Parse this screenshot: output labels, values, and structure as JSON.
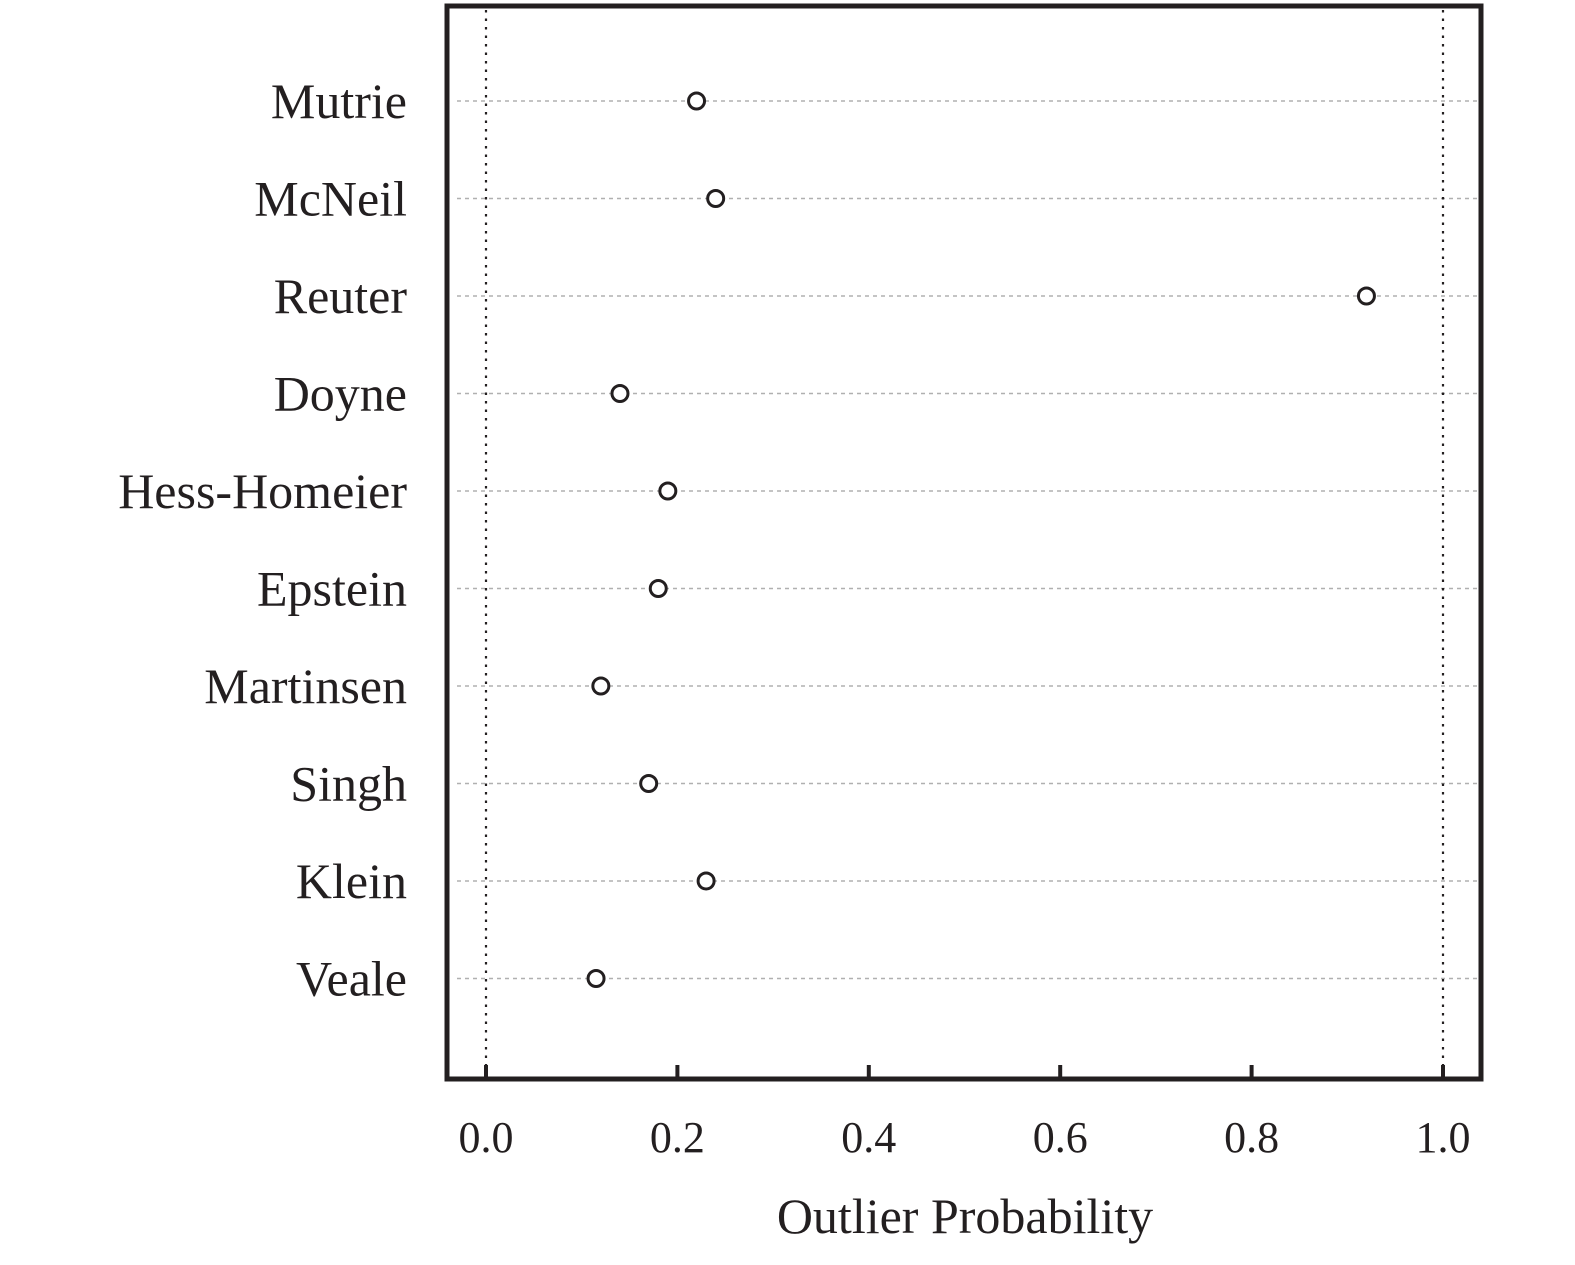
{
  "chart_data": {
    "type": "scatter",
    "xlabel": "Outlier Probability",
    "ylabel": "",
    "xlim": [
      -0.02,
      1.02
    ],
    "xticks": [
      "0.0",
      "0.2",
      "0.4",
      "0.6",
      "0.8",
      "1.0"
    ],
    "reference_lines_x": [
      0.0,
      1.0
    ],
    "grid": "horizontal dotted",
    "marker": "open circle",
    "categories": [
      "Mutrie",
      "McNeil",
      "Reuter",
      "Doyne",
      "Hess-Homeier",
      "Epstein",
      "Martinsen",
      "Singh",
      "Klein",
      "Veale"
    ],
    "values": [
      0.22,
      0.24,
      0.92,
      0.14,
      0.19,
      0.18,
      0.12,
      0.17,
      0.23,
      0.115
    ]
  }
}
